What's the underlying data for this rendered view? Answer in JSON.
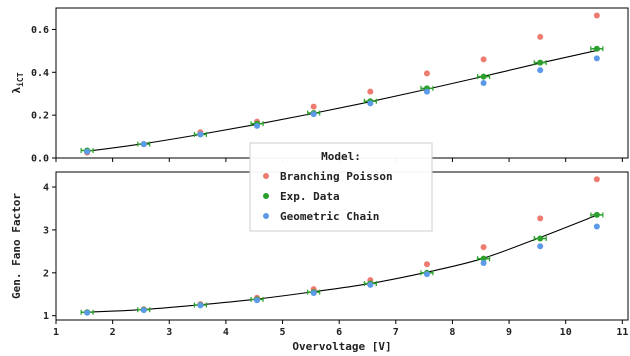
{
  "chart_data": [
    {
      "type": "scatter",
      "ylabel": "λ",
      "ylabel_sub": "iCT",
      "xlim": [
        1,
        11.1
      ],
      "ylim": [
        0,
        0.7
      ],
      "yticks": [
        0.0,
        0.2,
        0.4,
        0.6
      ],
      "ytick_labels": [
        "0.0",
        "0.2",
        "0.4",
        "0.6"
      ],
      "x": [
        1.55,
        2.55,
        3.55,
        4.55,
        5.55,
        6.55,
        7.55,
        8.55,
        9.55,
        10.55
      ],
      "series": [
        {
          "name": "Branching Poisson",
          "color": "#ef7a70",
          "values": [
            0.025,
            0.065,
            0.12,
            0.17,
            0.24,
            0.31,
            0.395,
            0.46,
            0.565,
            0.665
          ]
        },
        {
          "name": "Exp. Data",
          "color": "#2ca02c",
          "values": [
            0.035,
            0.065,
            0.11,
            0.16,
            0.21,
            0.265,
            0.325,
            0.38,
            0.445,
            0.51
          ],
          "errorbars": true
        },
        {
          "name": "Geometric Chain",
          "color": "#5b9ae8",
          "values": [
            0.03,
            0.065,
            0.11,
            0.15,
            0.205,
            0.255,
            0.31,
            0.35,
            0.41,
            0.465
          ]
        }
      ],
      "fit_line": {
        "x": [
          1.5,
          2.5,
          3.5,
          4.5,
          5.5,
          6.5,
          7.5,
          8.5,
          9.5,
          10.6
        ],
        "y": [
          0.03,
          0.065,
          0.108,
          0.155,
          0.206,
          0.26,
          0.318,
          0.378,
          0.44,
          0.505
        ]
      }
    },
    {
      "type": "scatter",
      "xlabel": "Overvoltage [V]",
      "ylabel": "Gen. Fano Factor",
      "xlim": [
        1,
        11.1
      ],
      "ylim": [
        0.9,
        4.35
      ],
      "xticks": [
        1,
        2,
        3,
        4,
        5,
        6,
        7,
        8,
        9,
        10,
        11
      ],
      "xtick_labels": [
        "1",
        "2",
        "3",
        "4",
        "5",
        "6",
        "7",
        "8",
        "9",
        "10",
        "11"
      ],
      "yticks": [
        1,
        2,
        3,
        4
      ],
      "ytick_labels": [
        "1",
        "2",
        "3",
        "4"
      ],
      "x": [
        1.55,
        2.55,
        3.55,
        4.55,
        5.55,
        6.55,
        7.55,
        8.55,
        9.55,
        10.55
      ],
      "series": [
        {
          "name": "Branching Poisson",
          "color": "#ef7a70",
          "values": [
            1.08,
            1.15,
            1.27,
            1.42,
            1.62,
            1.83,
            2.2,
            2.6,
            3.27,
            4.18
          ]
        },
        {
          "name": "Exp. Data",
          "color": "#2ca02c",
          "values": [
            1.08,
            1.14,
            1.25,
            1.38,
            1.55,
            1.75,
            2.0,
            2.33,
            2.8,
            3.35
          ],
          "errorbars": true
        },
        {
          "name": "Geometric Chain",
          "color": "#5b9ae8",
          "values": [
            1.07,
            1.13,
            1.24,
            1.36,
            1.53,
            1.72,
            1.97,
            2.23,
            2.62,
            3.08
          ]
        }
      ],
      "fit_line": {
        "x": [
          1.5,
          2.5,
          3.5,
          4.5,
          5.5,
          6.5,
          7.5,
          8.5,
          9.5,
          10.6
        ],
        "y": [
          1.08,
          1.14,
          1.25,
          1.38,
          1.55,
          1.74,
          2.0,
          2.32,
          2.8,
          3.37
        ]
      }
    }
  ],
  "legend": {
    "title": "Model:",
    "placement": "center",
    "entries": [
      {
        "label": "Branching Poisson",
        "color": "#ef7a70"
      },
      {
        "label": "Exp. Data",
        "color": "#2ca02c"
      },
      {
        "label": "Geometric Chain",
        "color": "#5b9ae8"
      }
    ]
  }
}
